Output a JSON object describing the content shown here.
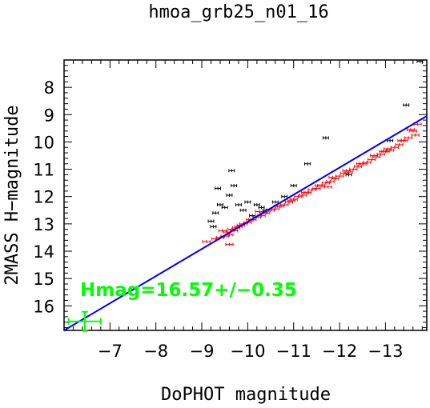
{
  "chart_data": {
    "type": "scatter",
    "title": "hmoa_grb25_n01_16",
    "xlabel": "DoPHOT magnitude",
    "ylabel": "2MASS H−magnitude",
    "xlim": [
      -6.0,
      -13.9
    ],
    "ylim": [
      16.9,
      7.0
    ],
    "x_axis_reversed": true,
    "y_axis_inverted": true,
    "xticks": [
      -7,
      -8,
      -9,
      -10,
      -11,
      -12,
      -13
    ],
    "xtick_labels": [
      "−7",
      "−8",
      "−9",
      "−10",
      "−11",
      "−12",
      "−13"
    ],
    "yticks": [
      8,
      9,
      10,
      11,
      12,
      13,
      14,
      15,
      16
    ],
    "ytick_labels": [
      "8",
      "9",
      "10",
      "11",
      "12",
      "13",
      "14",
      "15",
      "16"
    ],
    "grid": false,
    "annotation": "Hmag=16.57+/−0.35",
    "colors": {
      "accepted_points": "#ff0000",
      "rejected_points": "#000000",
      "fit_line": "#0000ff",
      "result": "#00ff00"
    },
    "fit_line": {
      "x": [
        -6.0,
        -13.9
      ],
      "y": [
        16.9,
        9.05
      ]
    },
    "result_point": {
      "x": -6.45,
      "y": 16.57,
      "xerr": 0.35,
      "yerr": 0.35
    },
    "series": [
      {
        "x": [
          -9.3,
          -9.4,
          -9.5,
          -9.55,
          -9.6,
          -9.65,
          -9.7,
          -9.8,
          -9.85,
          -9.9,
          -10.0,
          -10.1,
          -10.2,
          -10.3,
          -10.4,
          -10.5,
          -10.6,
          -10.7,
          -10.8,
          -10.9,
          -11.0,
          -11.1,
          -11.2,
          -11.3,
          -11.4,
          -11.5,
          -11.6,
          -11.7,
          -11.8,
          -11.9,
          -12.0,
          -12.1,
          -12.2,
          -12.3,
          -12.4,
          -12.5,
          -12.6,
          -12.7,
          -12.8,
          -12.9,
          -13.0,
          -13.1,
          -13.2,
          -13.3,
          -13.4,
          -13.5,
          -13.6,
          -13.7,
          -9.45,
          -9.75,
          -10.05,
          -10.35,
          -10.65,
          -10.95,
          -11.25,
          -11.55,
          -11.85,
          -12.15,
          -12.45,
          -12.75,
          -13.05,
          -13.35,
          -13.65,
          -9.1,
          -9.6,
          -10.25,
          -11.75,
          -12.95,
          -13.55
        ],
        "y": [
          13.55,
          13.5,
          13.45,
          13.3,
          13.4,
          13.2,
          13.25,
          13.1,
          13.05,
          13.0,
          12.95,
          12.85,
          12.75,
          12.7,
          12.6,
          12.5,
          12.45,
          12.35,
          12.3,
          12.2,
          12.1,
          12.0,
          11.95,
          11.85,
          11.75,
          11.7,
          11.6,
          11.5,
          11.45,
          11.35,
          11.25,
          11.15,
          11.1,
          11.0,
          10.9,
          10.8,
          10.75,
          10.65,
          10.55,
          10.45,
          10.35,
          10.3,
          10.2,
          10.1,
          9.95,
          9.85,
          9.6,
          9.35,
          13.25,
          13.15,
          12.85,
          12.6,
          12.35,
          12.15,
          11.85,
          11.6,
          11.3,
          11.05,
          10.8,
          10.5,
          10.25,
          9.95,
          9.75,
          13.65,
          13.75,
          12.55,
          11.65,
          10.35,
          9.55
        ],
        "xerr": 0.08,
        "yerr": 0.03,
        "color": "#ff0000"
      },
      {
        "x": [
          -9.2,
          -9.3,
          -9.4,
          -9.25,
          -9.5,
          -9.6,
          -9.7,
          -9.8,
          -9.9,
          -10.0,
          -10.1,
          -10.2,
          -10.4,
          -10.6,
          -10.8,
          -11.0,
          -11.3,
          -11.7,
          -12.2,
          -13.1,
          -13.45,
          -13.75,
          -9.35,
          -9.65,
          -10.3
        ],
        "y": [
          12.9,
          12.6,
          12.3,
          13.1,
          12.4,
          11.95,
          11.6,
          12.3,
          12.5,
          12.2,
          12.7,
          12.3,
          12.5,
          12.2,
          12.0,
          11.6,
          10.8,
          9.85,
          11.2,
          9.95,
          8.65,
          7.05,
          11.7,
          11.05,
          12.4
        ],
        "xerr": 0.06,
        "yerr": 0.03,
        "color": "#000000"
      }
    ]
  }
}
